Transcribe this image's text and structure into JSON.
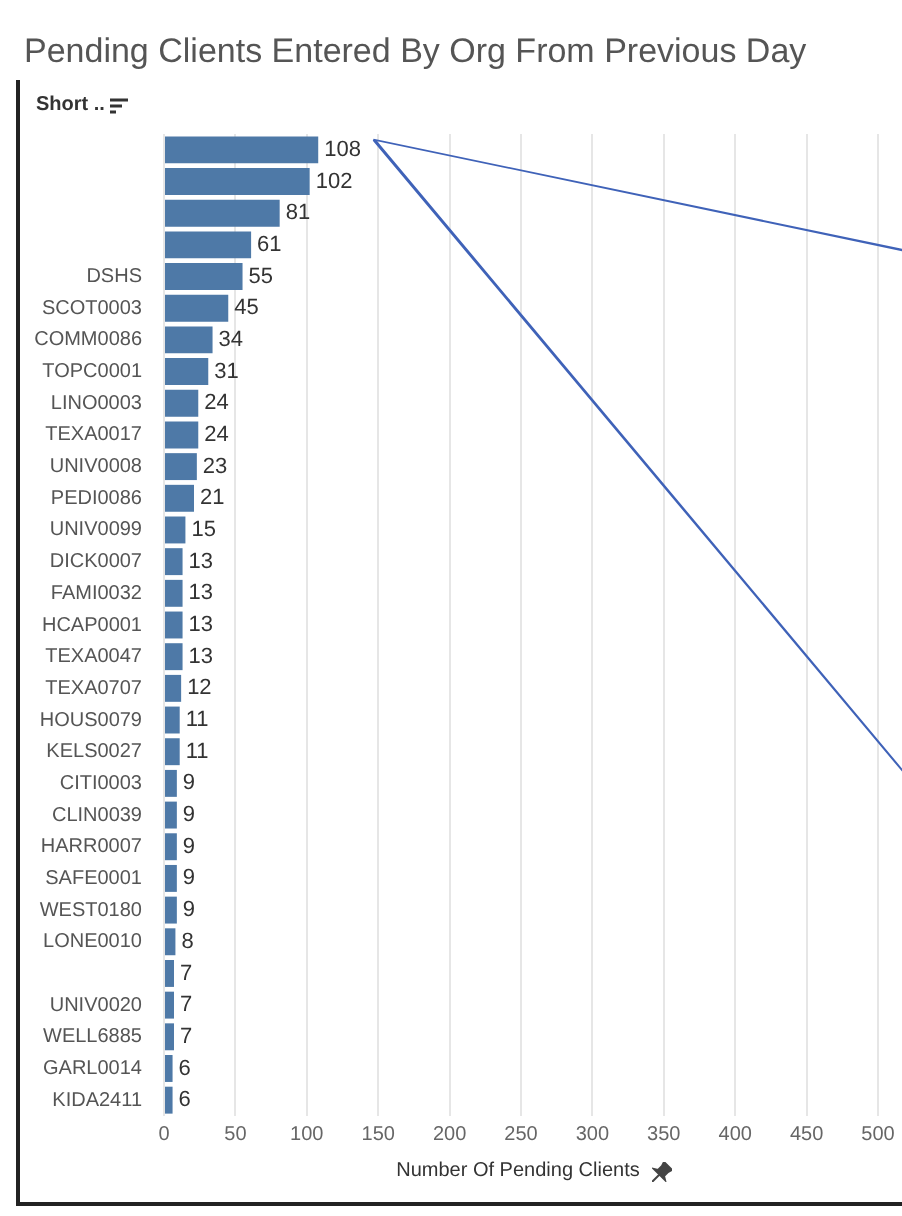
{
  "chart_data": {
    "type": "bar",
    "orientation": "horizontal",
    "title": "Pending Clients Entered By Org From Previous Day",
    "ylabel": "Short ..",
    "xlabel": "Number Of Pending Clients",
    "categories": [
      null,
      null,
      null,
      null,
      "DSHS",
      "SCOT0003",
      "COMM0086",
      "TOPC0001",
      "LINO0003",
      "TEXA0017",
      "UNIV0008",
      "PEDI0086",
      "UNIV0099",
      "DICK0007",
      "FAMI0032",
      "HCAP0001",
      "TEXA0047",
      "TEXA0707",
      "HOUS0079",
      "KELS0027",
      "CITI0003",
      "CLIN0039",
      "HARR0007",
      "SAFE0001",
      "WEST0180",
      "LONE0010",
      null,
      "UNIV0020",
      "WELL6885",
      "GARL0014",
      "KIDA2411"
    ],
    "values": [
      108,
      102,
      81,
      61,
      55,
      45,
      34,
      31,
      24,
      24,
      23,
      21,
      15,
      13,
      13,
      13,
      13,
      12,
      11,
      11,
      9,
      9,
      9,
      9,
      9,
      8,
      7,
      7,
      7,
      6,
      6
    ],
    "color": "#4e79a7",
    "xlim": [
      0,
      500
    ],
    "xticks": [
      0,
      50,
      100,
      150,
      200,
      250,
      300,
      350,
      400,
      450,
      500
    ],
    "grid": "x",
    "data_labels": true,
    "legend": false
  }
}
